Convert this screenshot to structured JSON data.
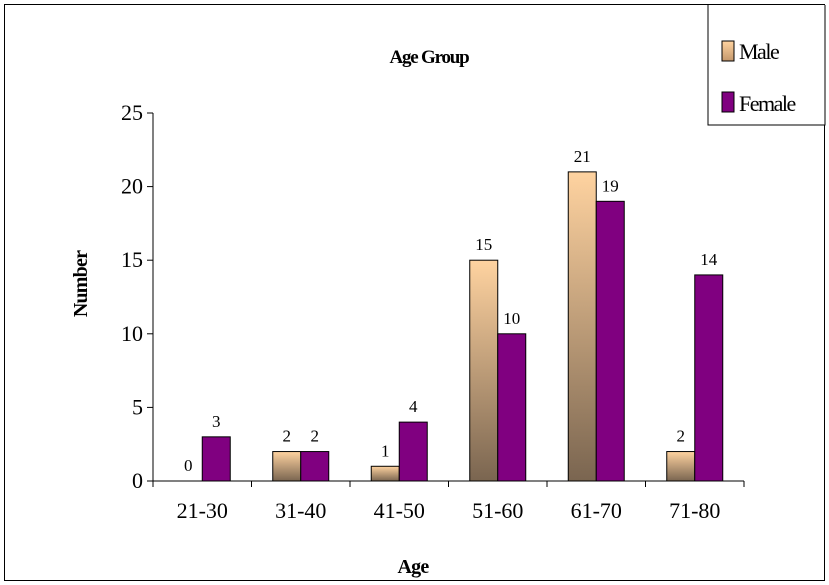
{
  "chart_data": {
    "type": "bar",
    "title": "Age Group",
    "xlabel": "Age",
    "ylabel": "Number",
    "categories": [
      "21-30",
      "31-40",
      "41-50",
      "51-60",
      "61-70",
      "71-80"
    ],
    "series": [
      {
        "name": "Male",
        "values": [
          0,
          2,
          1,
          15,
          21,
          2
        ],
        "color_top": "#ffd3a0",
        "color_bottom": "#7a6550"
      },
      {
        "name": "Female",
        "values": [
          3,
          2,
          4,
          10,
          19,
          14
        ],
        "color": "#800080"
      }
    ],
    "ylim": [
      0,
      25
    ],
    "yticks": [
      0,
      5,
      10,
      15,
      20,
      25
    ],
    "grid": false,
    "legend": "top-right",
    "data_labels": true
  }
}
